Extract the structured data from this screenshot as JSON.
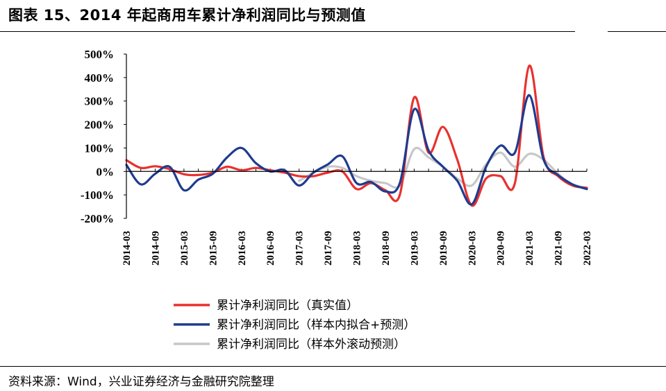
{
  "figure": {
    "title": "图表 15、2014 年起商用车累计净利润同比与预测值",
    "source": "资料来源：Wind，兴业证券经济与金融研究院整理"
  },
  "chart_data": {
    "type": "line",
    "title": "",
    "xlabel": "",
    "ylabel": "",
    "ylim": [
      -200,
      500
    ],
    "y_ticks": [
      "500%",
      "400%",
      "300%",
      "200%",
      "100%",
      "0%",
      "-100%",
      "-200%"
    ],
    "x_ticks": [
      "2014-03",
      "2014-09",
      "2015-03",
      "2015-09",
      "2016-03",
      "2016-09",
      "2017-03",
      "2017-09",
      "2018-03",
      "2018-09",
      "2019-03",
      "2019-09",
      "2020-03",
      "2020-09",
      "2021-03",
      "2021-09",
      "2022-03"
    ],
    "x": [
      "2014-03",
      "2014-06",
      "2014-09",
      "2014-12",
      "2015-03",
      "2015-06",
      "2015-09",
      "2015-12",
      "2016-03",
      "2016-06",
      "2016-09",
      "2016-12",
      "2017-03",
      "2017-06",
      "2017-09",
      "2017-12",
      "2018-03",
      "2018-06",
      "2018-09",
      "2018-12",
      "2019-03",
      "2019-06",
      "2019-09",
      "2019-12",
      "2020-03",
      "2020-06",
      "2020-09",
      "2020-12",
      "2021-03",
      "2021-06",
      "2021-09",
      "2021-12",
      "2022-03"
    ],
    "legend_position": "bottom",
    "series": [
      {
        "name": "累计净利润同比（真实值）",
        "color": "#e8312f",
        "values": [
          48,
          15,
          22,
          10,
          -12,
          -15,
          -5,
          20,
          5,
          15,
          5,
          -5,
          -20,
          -20,
          -5,
          0,
          -75,
          -50,
          -80,
          -100,
          315,
          80,
          190,
          50,
          -145,
          -30,
          -20,
          -50,
          450,
          60,
          -20,
          -60,
          -70
        ]
      },
      {
        "name": "累计净利润同比（样本内拟合+预测）",
        "color": "#1f3b8f",
        "values": [
          28,
          -55,
          -10,
          20,
          -80,
          -35,
          -10,
          60,
          100,
          35,
          0,
          5,
          -60,
          -5,
          30,
          65,
          -50,
          -45,
          -85,
          -50,
          265,
          90,
          20,
          -40,
          -140,
          20,
          110,
          80,
          325,
          50,
          -15,
          -55,
          -75
        ]
      },
      {
        "name": "累计净利润同比（样本外滚动预测）",
        "color": "#c7c7c7",
        "values": [
          null,
          null,
          null,
          null,
          null,
          null,
          null,
          null,
          null,
          null,
          null,
          null,
          -40,
          -5,
          20,
          15,
          -20,
          -40,
          -50,
          -60,
          95,
          60,
          20,
          -30,
          -60,
          30,
          80,
          20,
          75,
          50,
          -10,
          -55,
          -70
        ]
      }
    ]
  }
}
